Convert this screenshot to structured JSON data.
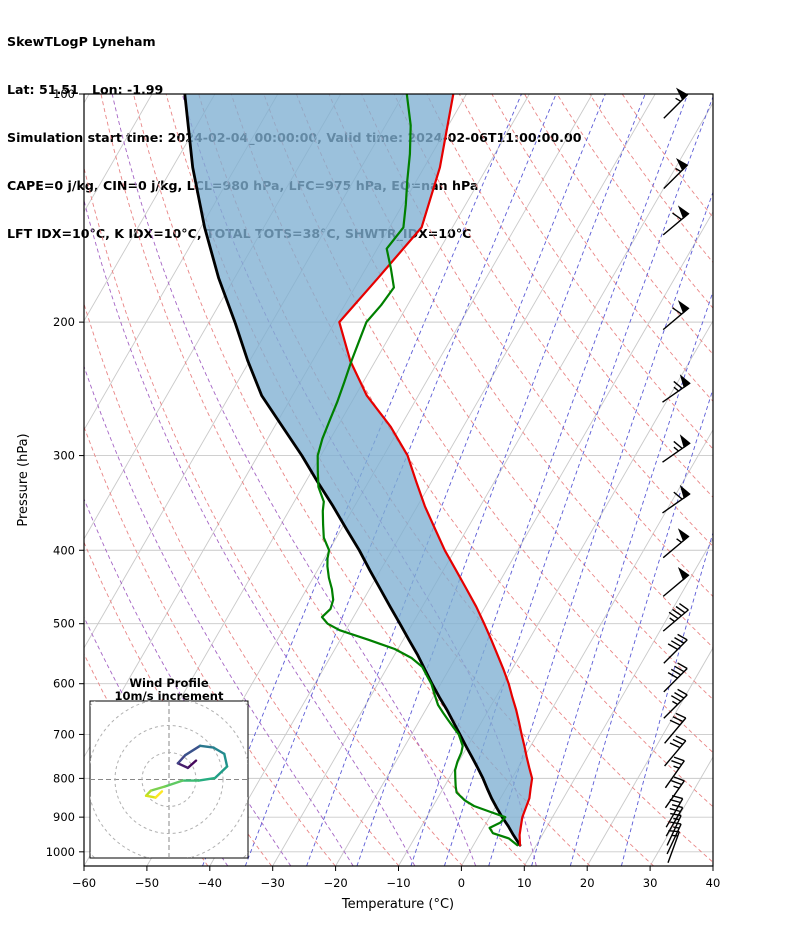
{
  "header": {
    "line1": "SkewTLogP Lyneham",
    "line2": "Lat: 51.51   Lon: -1.99",
    "line3": "Simulation start time: 2024-02-04_00:00:00, Valid time: 2024-02-06T11:00:00.00",
    "line4": "CAPE=0 j/kg, CIN=0 j/kg, LCL=980 hPa, LFC=975 hPa, EQ=nan hPa",
    "line5": "LFT IDX=10°C, K IDX=10°C, TOTAL TOTS=38°C, SHWTR_IDX=10°C"
  },
  "chart_data": {
    "type": "line",
    "title": "SkewTLogP Lyneham",
    "xlabel": "Temperature (°C)",
    "ylabel": "Pressure (hPa)",
    "xlim": [
      -60,
      40
    ],
    "pressure_range": [
      100,
      1044
    ],
    "skew_ratio": 0.577,
    "x_ticks": [
      {
        "v": -60,
        "label": "−60"
      },
      {
        "v": -50,
        "label": "−50"
      },
      {
        "v": -40,
        "label": "−40"
      },
      {
        "v": -30,
        "label": "−30"
      },
      {
        "v": -20,
        "label": "−20"
      },
      {
        "v": -10,
        "label": "−10"
      },
      {
        "v": 0,
        "label": "0"
      },
      {
        "v": 10,
        "label": "10"
      },
      {
        "v": 20,
        "label": "20"
      },
      {
        "v": 30,
        "label": "30"
      },
      {
        "v": 40,
        "label": "40"
      }
    ],
    "y_ticks": [
      {
        "v": 100,
        "label": "100"
      },
      {
        "v": 200,
        "label": "200"
      },
      {
        "v": 300,
        "label": "300"
      },
      {
        "v": 400,
        "label": "400"
      },
      {
        "v": 500,
        "label": "500"
      },
      {
        "v": 600,
        "label": "600"
      },
      {
        "v": 700,
        "label": "700"
      },
      {
        "v": 800,
        "label": "800"
      },
      {
        "v": 900,
        "label": "900"
      },
      {
        "v": 1000,
        "label": "1000"
      }
    ],
    "colors": {
      "temperature": "#e60000",
      "dewpoint": "#008000",
      "parcel": "#000000",
      "shade": "#7fb0d2",
      "isotherm": "#c9c9c9",
      "pressure_grid": "#c9c9c9",
      "dry_adiabat": "#e98585",
      "moist_adiabat": "#a464c4",
      "mixing_ratio": "#5b5bd6",
      "barb": "#000000"
    },
    "dry_adiabats_K": [
      230,
      240,
      250,
      260,
      270,
      280,
      290,
      300,
      310,
      320,
      330,
      340,
      350,
      360,
      370,
      380,
      390,
      400,
      410,
      420,
      430,
      440
    ],
    "moist_adiabats_C": [
      -40,
      -30,
      -20,
      -10,
      0,
      10
    ],
    "mixing_ratios_gkg": [
      0.1,
      0.2,
      0.5,
      1,
      2,
      3,
      5,
      8,
      12,
      20
    ],
    "temperature_profile": {
      "pressure_hPa": [
        980,
        950,
        925,
        900,
        875,
        850,
        825,
        800,
        775,
        750,
        725,
        700,
        675,
        650,
        625,
        600,
        575,
        550,
        525,
        500,
        475,
        450,
        425,
        400,
        375,
        350,
        325,
        300,
        275,
        250,
        225,
        200,
        175,
        150,
        125,
        100
      ],
      "temp_C": [
        7.4,
        6.4,
        5.8,
        5.2,
        4.9,
        4.6,
        3.9,
        3.2,
        1.8,
        0.4,
        -1.0,
        -2.5,
        -4.0,
        -5.6,
        -7.4,
        -9.2,
        -11.3,
        -13.6,
        -16.0,
        -18.6,
        -21.4,
        -24.6,
        -28.0,
        -31.6,
        -35.1,
        -38.8,
        -42.4,
        -46.2,
        -51.5,
        -58.2,
        -64.0,
        -69.3,
        -67.2,
        -64.9,
        -67.5,
        -72.1
      ]
    },
    "parcel_profile": {
      "pressure_hPa": [
        980,
        950,
        925,
        900,
        875,
        850,
        825,
        800,
        775,
        750,
        725,
        700,
        675,
        650,
        625,
        600,
        575,
        550,
        525,
        500,
        475,
        450,
        425,
        400,
        375,
        350,
        325,
        300,
        275,
        250,
        225,
        200,
        175,
        150,
        125,
        100
      ],
      "temp_C": [
        7.4,
        5.4,
        3.8,
        2.0,
        0.3,
        -1.4,
        -3.0,
        -4.6,
        -6.4,
        -8.3,
        -10.3,
        -12.3,
        -14.4,
        -16.6,
        -19.0,
        -21.4,
        -23.8,
        -26.3,
        -29.1,
        -32.0,
        -35.1,
        -38.3,
        -41.7,
        -45.2,
        -49.2,
        -53.4,
        -58.1,
        -63.0,
        -68.7,
        -74.9,
        -80.3,
        -85.9,
        -92.5,
        -99.4,
        -106.8,
        -114.8
      ]
    },
    "dewpoint_profile": {
      "pressure_hPa": [
        980,
        960,
        945,
        930,
        915,
        900,
        885,
        870,
        855,
        850,
        835,
        820,
        800,
        780,
        760,
        740,
        725,
        710,
        700,
        685,
        670,
        655,
        640,
        620,
        600,
        585,
        570,
        555,
        540,
        525,
        510,
        500,
        490,
        478,
        465,
        450,
        435,
        420,
        410,
        400,
        385,
        370,
        355,
        345,
        330,
        315,
        300,
        285,
        270,
        255,
        240,
        225,
        210,
        200,
        190,
        180,
        170,
        160,
        150,
        140,
        130,
        120,
        110,
        100
      ],
      "temp_C": [
        7.0,
        5.0,
        2.0,
        1.0,
        2.2,
        2.5,
        -0.5,
        -3.5,
        -5.5,
        -6.0,
        -7.5,
        -8.2,
        -9.0,
        -9.8,
        -10.2,
        -10.4,
        -10.8,
        -11.8,
        -12.5,
        -14.0,
        -15.5,
        -17.0,
        -18.5,
        -20.0,
        -21.5,
        -23.0,
        -24.5,
        -27.0,
        -30.5,
        -35.5,
        -41.0,
        -43.5,
        -45.0,
        -44.4,
        -44.8,
        -46.0,
        -47.5,
        -48.8,
        -49.5,
        -50.0,
        -52.0,
        -53.3,
        -54.6,
        -55.3,
        -57.5,
        -59.0,
        -60.5,
        -61.3,
        -61.8,
        -62.3,
        -63.0,
        -63.8,
        -64.5,
        -65.0,
        -64.2,
        -63.8,
        -66.0,
        -68.5,
        -67.8,
        -69.5,
        -71.5,
        -73.5,
        -76.0,
        -79.5
      ]
    },
    "wind_barbs_kt": [
      {
        "p": 1000,
        "dir": 200,
        "spd": 15
      },
      {
        "p": 975,
        "dir": 205,
        "spd": 15
      },
      {
        "p": 950,
        "dir": 205,
        "spd": 15
      },
      {
        "p": 925,
        "dir": 210,
        "spd": 20
      },
      {
        "p": 900,
        "dir": 210,
        "spd": 20
      },
      {
        "p": 850,
        "dir": 215,
        "spd": 25
      },
      {
        "p": 800,
        "dir": 215,
        "spd": 25
      },
      {
        "p": 750,
        "dir": 220,
        "spd": 30
      },
      {
        "p": 700,
        "dir": 220,
        "spd": 30
      },
      {
        "p": 650,
        "dir": 225,
        "spd": 35
      },
      {
        "p": 600,
        "dir": 225,
        "spd": 40
      },
      {
        "p": 550,
        "dir": 225,
        "spd": 40
      },
      {
        "p": 500,
        "dir": 230,
        "spd": 45
      },
      {
        "p": 450,
        "dir": 230,
        "spd": 50
      },
      {
        "p": 400,
        "dir": 230,
        "spd": 55
      },
      {
        "p": 350,
        "dir": 235,
        "spd": 60
      },
      {
        "p": 300,
        "dir": 235,
        "spd": 65
      },
      {
        "p": 250,
        "dir": 235,
        "spd": 65
      },
      {
        "p": 200,
        "dir": 230,
        "spd": 60
      },
      {
        "p": 150,
        "dir": 230,
        "spd": 60
      },
      {
        "p": 130,
        "dir": 225,
        "spd": 55
      },
      {
        "p": 105,
        "dir": 225,
        "spd": 55
      }
    ],
    "hodograph": {
      "title1": "Wind Profile",
      "title2": "10m/s increment",
      "ring_interval_ms": 10,
      "rings_ms": [
        10,
        20,
        30,
        40
      ],
      "trace_uv_ms": [
        {
          "u": 10.0,
          "v": 7.0,
          "c": "#46085c"
        },
        {
          "u": 7.0,
          "v": 4.3,
          "c": "#46085c"
        },
        {
          "u": 3.3,
          "v": 6.0,
          "c": "#471d6c"
        },
        {
          "u": 6.0,
          "v": 9.0,
          "c": "#414487"
        },
        {
          "u": 11.5,
          "v": 12.5,
          "c": "#3a528b"
        },
        {
          "u": 16.5,
          "v": 11.8,
          "c": "#2a788e"
        },
        {
          "u": 20.5,
          "v": 9.5,
          "c": "#25848e"
        },
        {
          "u": 21.5,
          "v": 4.8,
          "c": "#21918c"
        },
        {
          "u": 17.0,
          "v": 0.5,
          "c": "#219d88"
        },
        {
          "u": 11.0,
          "v": -0.4,
          "c": "#27ad81"
        },
        {
          "u": 5.0,
          "v": -0.4,
          "c": "#3dbc74"
        },
        {
          "u": -1.5,
          "v": -2.6,
          "c": "#5ec962"
        },
        {
          "u": -6.7,
          "v": -4.1,
          "c": "#7ad151"
        },
        {
          "u": -8.5,
          "v": -6.0,
          "c": "#aadc32"
        },
        {
          "u": -5.0,
          "v": -6.7,
          "c": "#d8e219"
        },
        {
          "u": -2.6,
          "v": -4.4,
          "c": "#fde725"
        }
      ]
    }
  }
}
